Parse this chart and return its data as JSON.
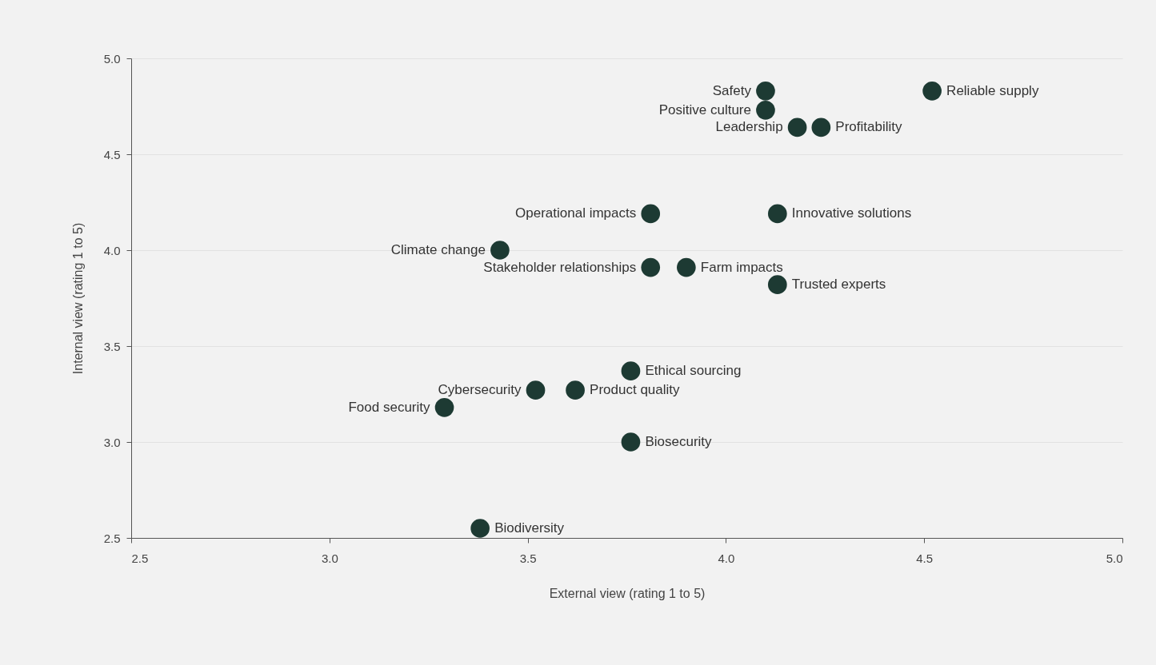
{
  "chart_data": {
    "type": "scatter",
    "xlabel": "External view (rating 1 to 5)",
    "ylabel": "Internal view (rating 1 to 5)",
    "x": [
      4.1,
      4.1,
      4.52,
      4.18,
      4.24,
      3.81,
      4.13,
      3.43,
      3.81,
      3.9,
      4.13,
      3.76,
      3.52,
      3.62,
      3.29,
      3.76,
      3.38
    ],
    "values": [
      4.83,
      4.73,
      4.83,
      4.64,
      4.64,
      4.19,
      4.19,
      4.0,
      3.91,
      3.91,
      3.82,
      3.37,
      3.27,
      3.27,
      3.18,
      3.0,
      2.55
    ],
    "color": "#1d3a33",
    "marker": "circle",
    "grid": "y",
    "xlim": [
      2.5,
      5.0
    ],
    "ylim": [
      2.5,
      5.0
    ],
    "xticks": [
      2.5,
      {
        "value": 3,
        "label": "3.0"
      },
      3.5,
      {
        "value": 4,
        "label": "4.0"
      },
      4.5,
      {
        "value": 5,
        "label": "5.0"
      }
    ],
    "yticks": [
      2.5,
      {
        "value": 3,
        "label": "3.0"
      },
      3.5,
      {
        "value": 4,
        "label": "4.0"
      },
      4.5,
      {
        "value": 5,
        "label": "5.0"
      }
    ],
    "annotations": [
      {
        "text": "Safety",
        "x": 4.1,
        "y": 4.83
      },
      {
        "text": "Positive culture",
        "x": 4.1,
        "y": 4.73
      },
      {
        "text": "Reliable supply",
        "x": 4.52,
        "y": 4.83
      },
      {
        "text": "Leadership",
        "x": 4.18,
        "y": 4.64
      },
      {
        "text": "Profitability",
        "x": 4.24,
        "y": 4.64
      },
      {
        "text": "Operational impacts",
        "x": 3.81,
        "y": 4.19
      },
      {
        "text": "Innovative solutions",
        "x": 4.13,
        "y": 4.19
      },
      {
        "text": "Climate change",
        "x": 3.43,
        "y": 4.0
      },
      {
        "text": "Stakeholder relationships",
        "x": 3.81,
        "y": 3.91
      },
      {
        "text": "Farm impacts",
        "x": 3.9,
        "y": 3.91
      },
      {
        "text": "Trusted experts",
        "x": 4.13,
        "y": 3.82
      },
      {
        "text": "Ethical sourcing",
        "x": 3.76,
        "y": 3.37
      },
      {
        "text": "Cybersecurity",
        "x": 3.52,
        "y": 3.27
      },
      {
        "text": "Product quality",
        "x": 3.62,
        "y": 3.27
      },
      {
        "text": "Food security",
        "x": 3.29,
        "y": 3.18
      },
      {
        "text": "Biosecurity",
        "x": 3.76,
        "y": 3.0
      },
      {
        "text": "Biodiversity",
        "x": 3.38,
        "y": 2.55
      }
    ]
  }
}
